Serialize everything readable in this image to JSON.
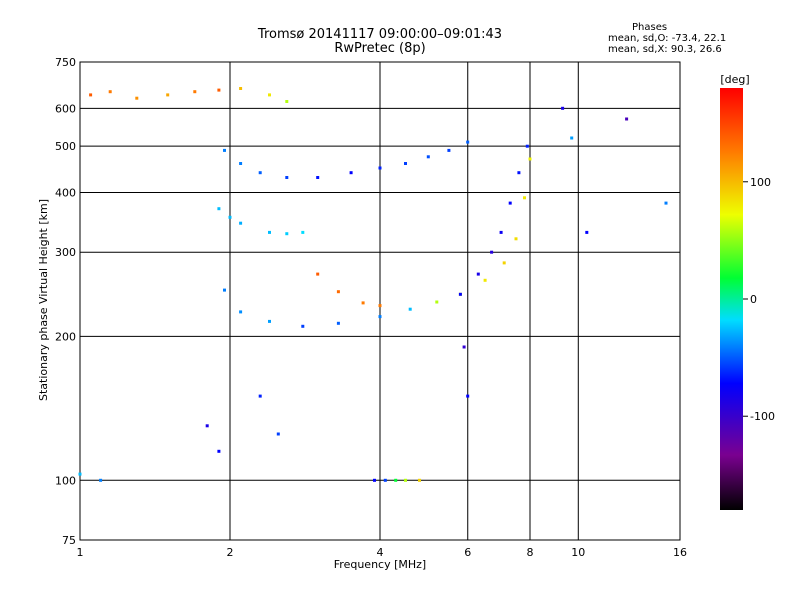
{
  "header": {
    "title_line1": "Tromsø 20141117 09:00:00–09:01:43",
    "title_line2": "RwPretec (8p)"
  },
  "phases": {
    "heading": "Phases",
    "line_o": "mean, sd,O: -73.4, 22.1",
    "line_x": "mean, sd,X:  90.3, 26.6"
  },
  "chart_data": {
    "type": "scatter",
    "title": "Tromsø 20141117 09:00:00–09:01:43",
    "subtitle": "RwPretec (8p)",
    "xlabel": "Frequency [MHz]",
    "ylabel": "Stationary phase Virtual Height [km]",
    "x_scale": "log",
    "y_scale": "log",
    "xlim": [
      1,
      16
    ],
    "ylim": [
      75,
      750
    ],
    "x_ticks": [
      1,
      2,
      4,
      6,
      8,
      10,
      16
    ],
    "y_ticks": [
      75,
      100,
      200,
      300,
      400,
      500,
      600,
      750
    ],
    "grid": true,
    "colorbar": {
      "label": "[deg]",
      "range": [
        -180,
        180
      ],
      "ticks": [
        100,
        0,
        -100
      ],
      "colormap": "rainbow"
    },
    "series": [
      {
        "values": [
          [
            1.05,
            640,
            150
          ],
          [
            1.15,
            650,
            140
          ],
          [
            1.3,
            630,
            130
          ],
          [
            1.5,
            640,
            120
          ],
          [
            1.7,
            650,
            140
          ],
          [
            1.9,
            655,
            150
          ],
          [
            2.1,
            660,
            110
          ],
          [
            2.4,
            640,
            90
          ],
          [
            2.6,
            620,
            60
          ]
        ]
      },
      {
        "values": [
          [
            1.95,
            490,
            -60
          ],
          [
            2.1,
            460,
            -60
          ],
          [
            2.3,
            440,
            -70
          ],
          [
            2.6,
            430,
            -80
          ],
          [
            3.0,
            430,
            -95
          ],
          [
            3.5,
            440,
            -100
          ],
          [
            4.0,
            450,
            -90
          ],
          [
            4.5,
            460,
            -80
          ],
          [
            5.0,
            475,
            -75
          ],
          [
            5.5,
            490,
            -80
          ],
          [
            6.0,
            510,
            -70
          ]
        ]
      },
      {
        "values": [
          [
            1.95,
            250,
            -60
          ],
          [
            2.1,
            225,
            -55
          ],
          [
            2.4,
            215,
            -50
          ],
          [
            2.8,
            210,
            -80
          ],
          [
            3.3,
            213,
            -70
          ],
          [
            4.0,
            220,
            -60
          ],
          [
            4.6,
            228,
            -40
          ],
          [
            5.2,
            236,
            60
          ],
          [
            5.8,
            245,
            80
          ],
          [
            6.5,
            262,
            90
          ],
          [
            7.1,
            285,
            100
          ],
          [
            7.5,
            320,
            95
          ],
          [
            7.8,
            390,
            90
          ],
          [
            8.0,
            470,
            85
          ]
        ]
      },
      {
        "values": [
          [
            5.8,
            245,
            -100
          ],
          [
            6.3,
            270,
            -110
          ],
          [
            6.7,
            300,
            -115
          ],
          [
            7.0,
            330,
            -105
          ],
          [
            7.3,
            380,
            -100
          ],
          [
            7.6,
            440,
            -95
          ],
          [
            7.9,
            500,
            -90
          ]
        ]
      },
      {
        "values": [
          [
            3.0,
            270,
            150
          ],
          [
            3.3,
            248,
            145
          ],
          [
            3.7,
            235,
            140
          ],
          [
            4.0,
            232,
            140
          ]
        ]
      },
      {
        "values": [
          [
            1.9,
            370,
            -40
          ],
          [
            2.0,
            355,
            -40
          ],
          [
            2.1,
            345,
            -45
          ]
        ]
      },
      {
        "values": [
          [
            2.4,
            330,
            -40
          ],
          [
            2.6,
            328,
            -35
          ],
          [
            2.8,
            330,
            -30
          ]
        ]
      },
      {
        "values": [
          [
            3.9,
            100,
            -100
          ],
          [
            4.1,
            100,
            -80
          ],
          [
            4.3,
            100,
            0
          ],
          [
            4.5,
            100,
            60
          ],
          [
            4.8,
            100,
            100
          ]
        ]
      },
      {
        "values": [
          [
            1.0,
            103,
            -40
          ],
          [
            1.1,
            100,
            -60
          ],
          [
            1.8,
            130,
            -110
          ],
          [
            1.9,
            115,
            -100
          ],
          [
            2.3,
            150,
            -90
          ],
          [
            2.5,
            125,
            -80
          ],
          [
            5.9,
            190,
            -120
          ],
          [
            6.0,
            150,
            -100
          ],
          [
            9.3,
            600,
            -110
          ],
          [
            9.7,
            520,
            -50
          ],
          [
            10.4,
            330,
            -100
          ],
          [
            12.5,
            570,
            -130
          ],
          [
            15.0,
            380,
            -60
          ]
        ]
      }
    ]
  }
}
